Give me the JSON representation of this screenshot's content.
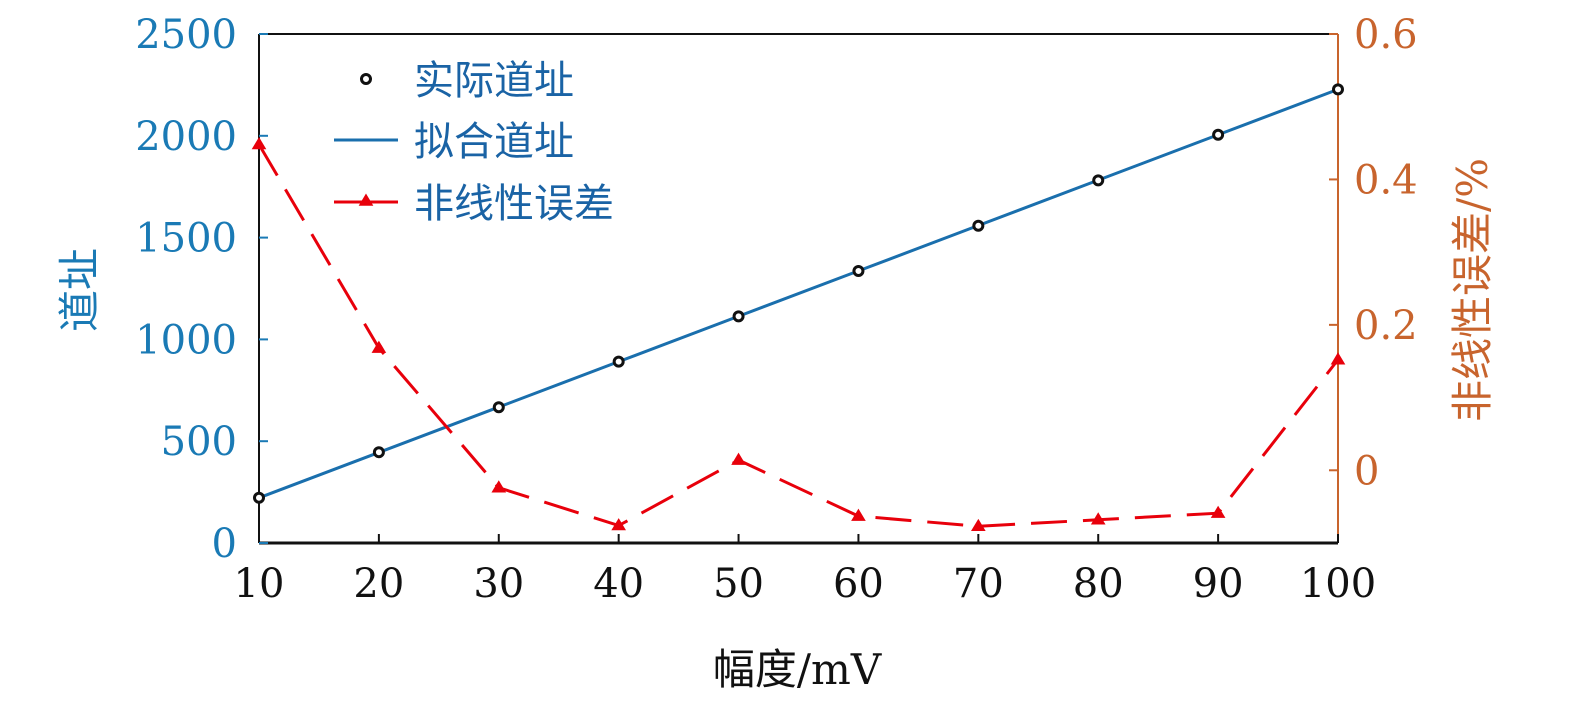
{
  "chart_data": {
    "type": "line",
    "xlabel": "幅度/mV",
    "ylabel_left": "道址",
    "ylabel_right": "非线性误差/%",
    "x": [
      10,
      20,
      30,
      40,
      50,
      60,
      70,
      80,
      90,
      100
    ],
    "xlim": [
      10,
      100
    ],
    "ylim_left": [
      0,
      2500
    ],
    "ylim_right": [
      -0.1,
      0.6
    ],
    "x_ticks": [
      10,
      20,
      30,
      40,
      50,
      60,
      70,
      80,
      90,
      100
    ],
    "y_left_ticks": [
      0,
      500,
      1000,
      1500,
      2000,
      2500
    ],
    "y_right_ticks": [
      "0",
      "0.2",
      "0.4",
      "0.6"
    ],
    "y_right_tick_values": [
      0,
      0.2,
      0.4,
      0.6
    ],
    "grid": false,
    "legend_position": "top-left",
    "series": [
      {
        "name": "实际道址",
        "axis": "left",
        "style": "markers",
        "color": "#111111",
        "values": [
          222,
          446,
          667,
          891,
          1113,
          1336,
          1558,
          1781,
          2005,
          2228
        ]
      },
      {
        "name": "拟合道址",
        "axis": "left",
        "style": "line",
        "color": "#1a6fad",
        "values": [
          222,
          444.9,
          667.8,
          890.7,
          1113.6,
          1336.4,
          1559.3,
          1782.2,
          2005.1,
          2228
        ]
      },
      {
        "name": "非线性误差",
        "axis": "right",
        "style": "dashed-line-triangle",
        "color": "#e8000b",
        "values": [
          0.448,
          0.168,
          -0.024,
          -0.076,
          0.014,
          -0.063,
          -0.077,
          -0.068,
          -0.059,
          0.152
        ]
      }
    ],
    "colors": {
      "left_axis": "#1a7ab5",
      "right_axis": "#c8642d",
      "bottom_axis": "#111111"
    }
  }
}
